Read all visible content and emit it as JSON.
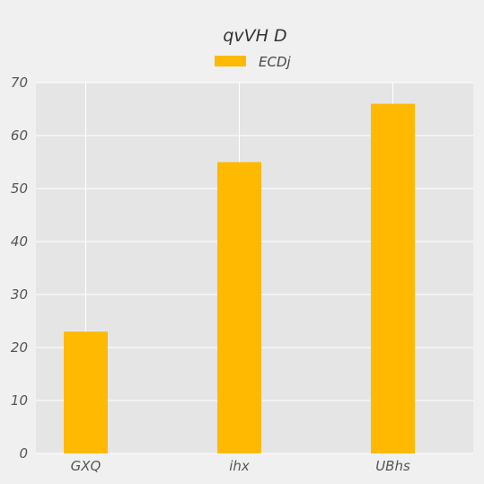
{
  "chart_data": {
    "type": "bar",
    "title": "qvVH D",
    "xlabel": "",
    "ylabel": "",
    "categories": [
      "GXQ",
      "ihx",
      "UBhs"
    ],
    "series": [
      {
        "name": "ECDj",
        "values": [
          23,
          55,
          66
        ],
        "color": "#ffb900"
      }
    ],
    "ylim": [
      0,
      70
    ],
    "yticks": [
      0,
      10,
      20,
      30,
      40,
      50,
      60,
      70
    ],
    "grid": true,
    "legend": "top-center",
    "colors": {
      "background": "#f0f0f0",
      "plot_background": "#e5e5e5",
      "grid": "#ffffff",
      "text": "#555555",
      "title": "#333333"
    }
  }
}
